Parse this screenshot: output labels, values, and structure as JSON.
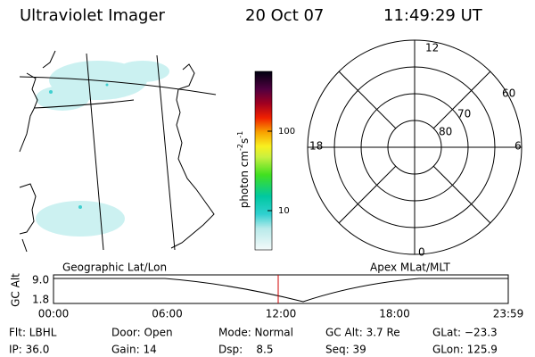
{
  "header": {
    "title": "Ultraviolet Imager",
    "date": "20 Oct 07",
    "time": "11:49:29 UT"
  },
  "colorbar": {
    "label": [
      "photon cm",
      "-2",
      "s",
      "-1"
    ],
    "ticks": [
      100,
      10
    ]
  },
  "polar": {
    "mlt_labels": [
      12,
      18,
      6,
      0
    ],
    "mlat_labels": [
      60,
      70,
      80
    ]
  },
  "panel_labels": [
    "Geographic Lat/Lon",
    "Apex MLat/MLT"
  ],
  "timeline": {
    "ylabel": "GC Alt",
    "yticks": [
      "9.0",
      "1.8"
    ],
    "xticks": [
      "00:00",
      "06:00",
      "12:00",
      "18:00",
      "23:59"
    ]
  },
  "info": {
    "rows": [
      [
        "Flt: LBHL",
        "Door: Open",
        "Mode: Normal",
        "GC Alt: 3.7 Re",
        "GLat: −23.3"
      ],
      [
        "IP: 36.0",
        "Gain: 14",
        "Dsp:    8.5",
        "Seq: 39",
        "GLon: 125.9"
      ]
    ]
  }
}
